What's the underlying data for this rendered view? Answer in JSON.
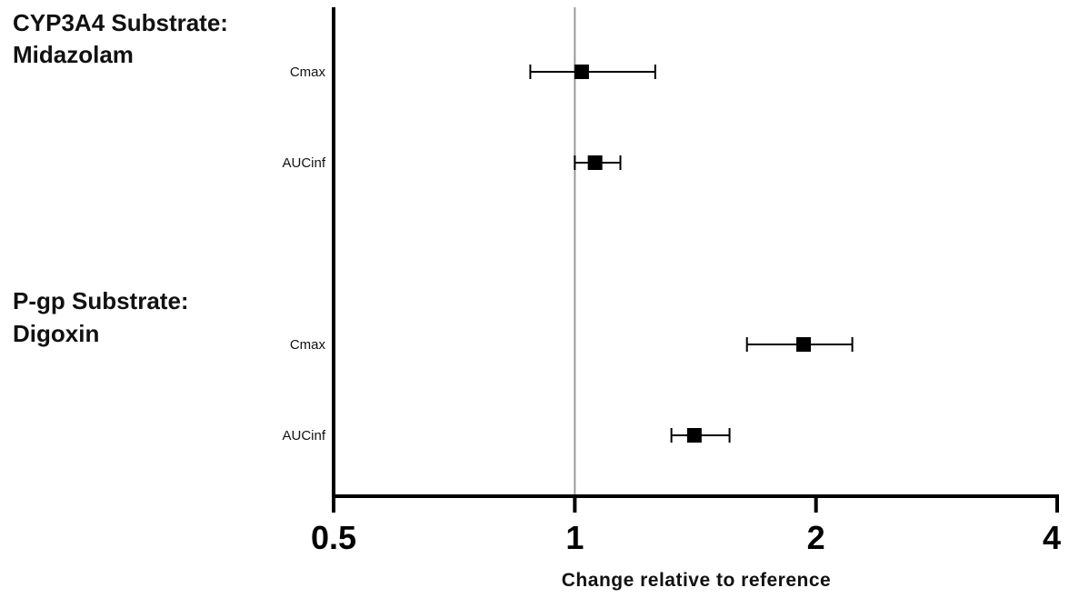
{
  "chart_data": {
    "type": "forest",
    "title": "",
    "xlabel": "Change relative to reference",
    "xscale": "log2",
    "xlim": [
      0.5,
      4
    ],
    "xticks": [
      0.5,
      1,
      2,
      4
    ],
    "xtick_labels": [
      "0.5",
      "1",
      "2",
      "4"
    ],
    "reference_line": 1,
    "grid": false,
    "groups": [
      {
        "title_lines": [
          "CYP3A4 Substrate:",
          "Midazolam"
        ],
        "rows": [
          {
            "label": "Cmax",
            "estimate": 1.02,
            "lower": 0.88,
            "upper": 1.26
          },
          {
            "label": "AUCinf",
            "estimate": 1.06,
            "lower": 1.0,
            "upper": 1.14
          }
        ]
      },
      {
        "title_lines": [
          "P-gp Substrate:",
          "Digoxin"
        ],
        "rows": [
          {
            "label": "Cmax",
            "estimate": 1.93,
            "lower": 1.64,
            "upper": 2.22
          },
          {
            "label": "AUCinf",
            "estimate": 1.41,
            "lower": 1.32,
            "upper": 1.56
          }
        ]
      }
    ]
  }
}
